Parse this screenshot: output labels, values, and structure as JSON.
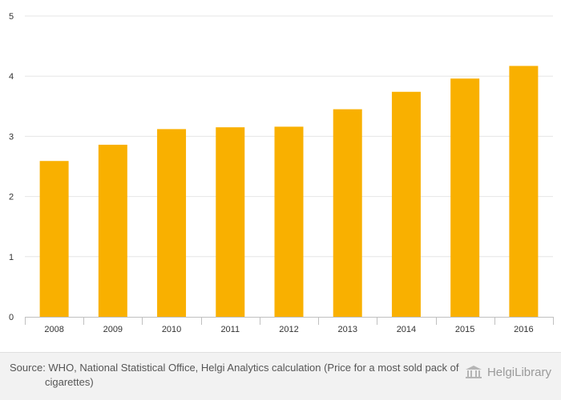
{
  "chart_data": {
    "type": "bar",
    "categories": [
      "2008",
      "2009",
      "2010",
      "2011",
      "2012",
      "2013",
      "2014",
      "2015",
      "2016"
    ],
    "values": [
      2.59,
      2.86,
      3.12,
      3.15,
      3.16,
      3.45,
      3.74,
      3.96,
      4.17
    ],
    "title": "",
    "xlabel": "",
    "ylabel": "",
    "ylim": [
      0,
      5
    ],
    "yticks": [
      0,
      1,
      2,
      3,
      4,
      5
    ],
    "grid": true,
    "bar_color": "#f9b000"
  },
  "footer": {
    "source": "Source: WHO, National Statistical Office, Helgi Analytics calculation (Price for a most sold pack of cigarettes)",
    "brand": "HelgiLibrary",
    "brand_icon": "library-building-icon"
  }
}
